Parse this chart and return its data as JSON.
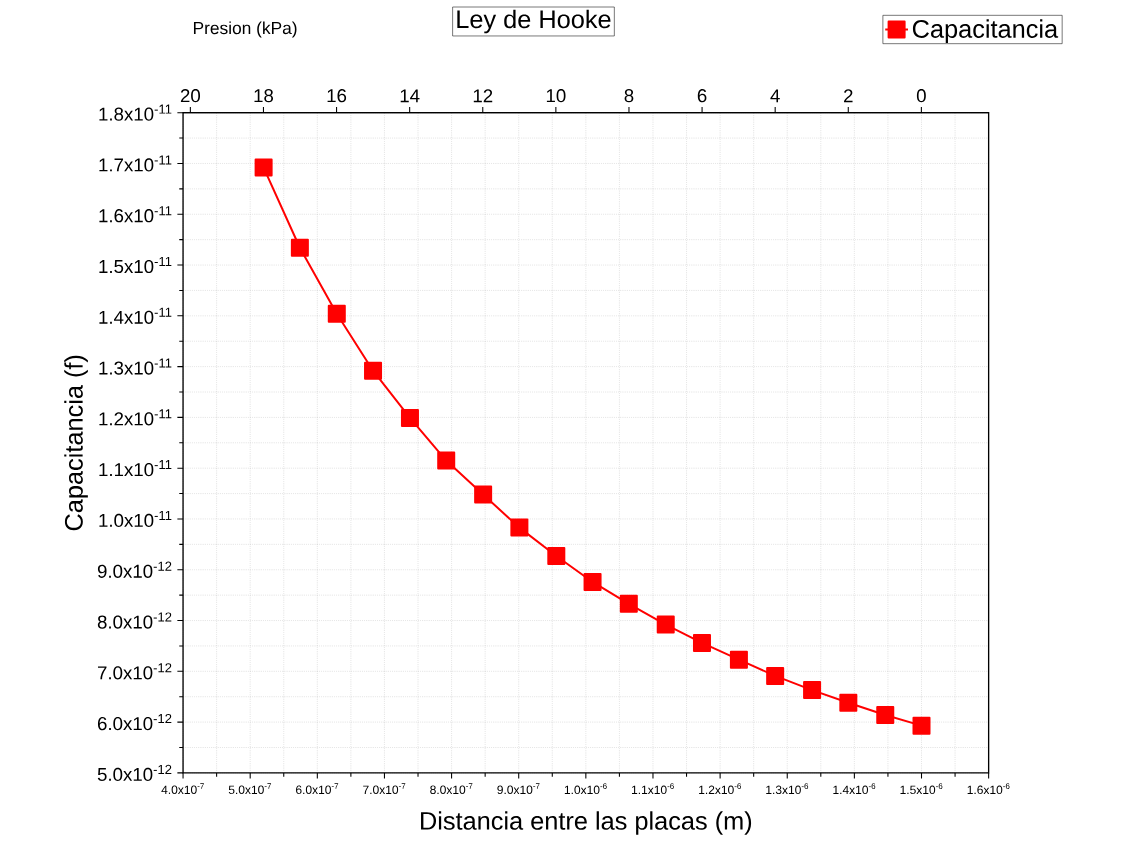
{
  "chart_data": {
    "type": "line",
    "title": "Ley de Hooke",
    "xlabel": "Distancia entre las placas (m)",
    "ylabel": "Capacitancia (f)",
    "x2label": "Presion (kPa)",
    "x": [
      5.2e-07,
      5.74e-07,
      6.29e-07,
      6.83e-07,
      7.38e-07,
      7.92e-07,
      8.47e-07,
      9.01e-07,
      9.56e-07,
      1.01e-06,
      1.064e-06,
      1.119e-06,
      1.173e-06,
      1.228e-06,
      1.282e-06,
      1.337e-06,
      1.391e-06,
      1.446e-06,
      1.5e-06
    ],
    "series": [
      {
        "name": "Capacitancia",
        "color": "#ff0000",
        "values": [
          1.692e-11,
          1.534e-11,
          1.404e-11,
          1.292e-11,
          1.199e-11,
          1.115e-11,
          1.048e-11,
          9.83e-12,
          9.27e-12,
          8.76e-12,
          8.33e-12,
          7.92e-12,
          7.56e-12,
          7.23e-12,
          6.91e-12,
          6.63e-12,
          6.38e-12,
          6.14e-12,
          5.93e-12
        ]
      }
    ],
    "xlim": [
      4e-07,
      1.6e-06
    ],
    "xticks": [
      {
        "value": 4e-07,
        "label": "4.0x10$^{-7}$"
      },
      {
        "value": 5e-07,
        "label": "5.0x10$^{-7}$"
      },
      {
        "value": 6e-07,
        "label": "6.0x10$^{-7}$"
      },
      {
        "value": 7e-07,
        "label": "7.0x10$^{-7}$"
      },
      {
        "value": 8e-07,
        "label": "8.0x10$^{-7}$"
      },
      {
        "value": 9e-07,
        "label": "9.0x10$^{-7}$"
      },
      {
        "value": 1e-06,
        "label": "1.0x10$^{-6}$"
      },
      {
        "value": 1.1e-06,
        "label": "1.1x10$^{-6}$"
      },
      {
        "value": 1.2e-06,
        "label": "1.2x10$^{-6}$"
      },
      {
        "value": 1.3e-06,
        "label": "1.3x10$^{-6}$"
      },
      {
        "value": 1.4e-06,
        "label": "1.4x10$^{-6}$"
      },
      {
        "value": 1.5e-06,
        "label": "1.5x10$^{-6}$"
      },
      {
        "value": 1.6e-06,
        "label": "1.6x10$^{-6}$"
      }
    ],
    "ylim": [
      5e-12,
      1.8e-11
    ],
    "yticks": [
      {
        "value": 5e-12,
        "label": "5.0x10$^{-12}$"
      },
      {
        "value": 6e-12,
        "label": "6.0x10$^{-12}$"
      },
      {
        "value": 7e-12,
        "label": "7.0x10$^{-12}$"
      },
      {
        "value": 8e-12,
        "label": "8.0x10$^{-12}$"
      },
      {
        "value": 9e-12,
        "label": "9.0x10$^{-12}$"
      },
      {
        "value": 1e-11,
        "label": "1.0x10$^{-11}$"
      },
      {
        "value": 1.1e-11,
        "label": "1.1x10$^{-11}$"
      },
      {
        "value": 1.2e-11,
        "label": "1.2x10$^{-11}$"
      },
      {
        "value": 1.3e-11,
        "label": "1.3x10$^{-11}$"
      },
      {
        "value": 1.4e-11,
        "label": "1.4x10$^{-11}$"
      },
      {
        "value": 1.5e-11,
        "label": "1.5x10$^{-11}$"
      },
      {
        "value": 1.6e-11,
        "label": "1.6x10$^{-11}$"
      },
      {
        "value": 1.7e-11,
        "label": "1.7x10$^{-11}$"
      },
      {
        "value": 1.8e-11,
        "label": "1.8x10$^{-11}$"
      }
    ],
    "x2lim": [
      20.2,
      -1.84
    ],
    "x2ticks": [
      20,
      18,
      16,
      14,
      12,
      10,
      8,
      6,
      4,
      2,
      0
    ],
    "grid": true,
    "legend": "top right",
    "marker": "square",
    "line_style": "solid"
  }
}
